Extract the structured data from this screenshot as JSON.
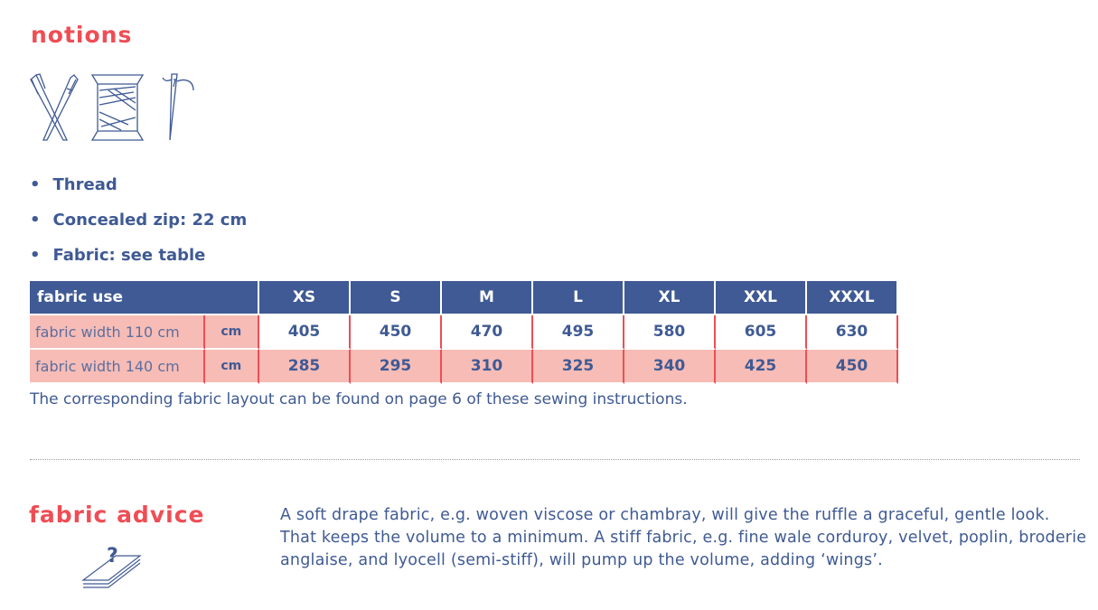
{
  "notions": {
    "title": "notions",
    "items": [
      "Thread",
      "Concealed zip: 22 cm",
      "Fabric: see table"
    ]
  },
  "table": {
    "header": "fabric use",
    "sizes": [
      "XS",
      "S",
      "M",
      "L",
      "XL",
      "XXL",
      "XXXL"
    ],
    "rows": [
      {
        "label": "fabric width 110 cm",
        "unit": "cm",
        "values": [
          "405",
          "450",
          "470",
          "495",
          "580",
          "605",
          "630"
        ]
      },
      {
        "label": "fabric width 140 cm",
        "unit": "cm",
        "values": [
          "285",
          "295",
          "310",
          "325",
          "340",
          "425",
          "450"
        ]
      }
    ]
  },
  "note": "The corresponding fabric layout can be found on page 6 of these sewing instructions.",
  "advice": {
    "title": "fabric advice",
    "text": "A soft drape fabric, e.g. woven viscose or chambray, will give the ruffle a graceful, gentle look. That keeps the volume to a minimum. A stiff fabric, e.g. fine wale corduroy, velvet, poplin, broderie anglaise, and lyocell (semi-stiff), will pump up the volume, adding ‘wings’."
  },
  "colors": {
    "blue": "#3f5a94",
    "red": "#ef4d55",
    "pink": "#f7bcb6"
  }
}
